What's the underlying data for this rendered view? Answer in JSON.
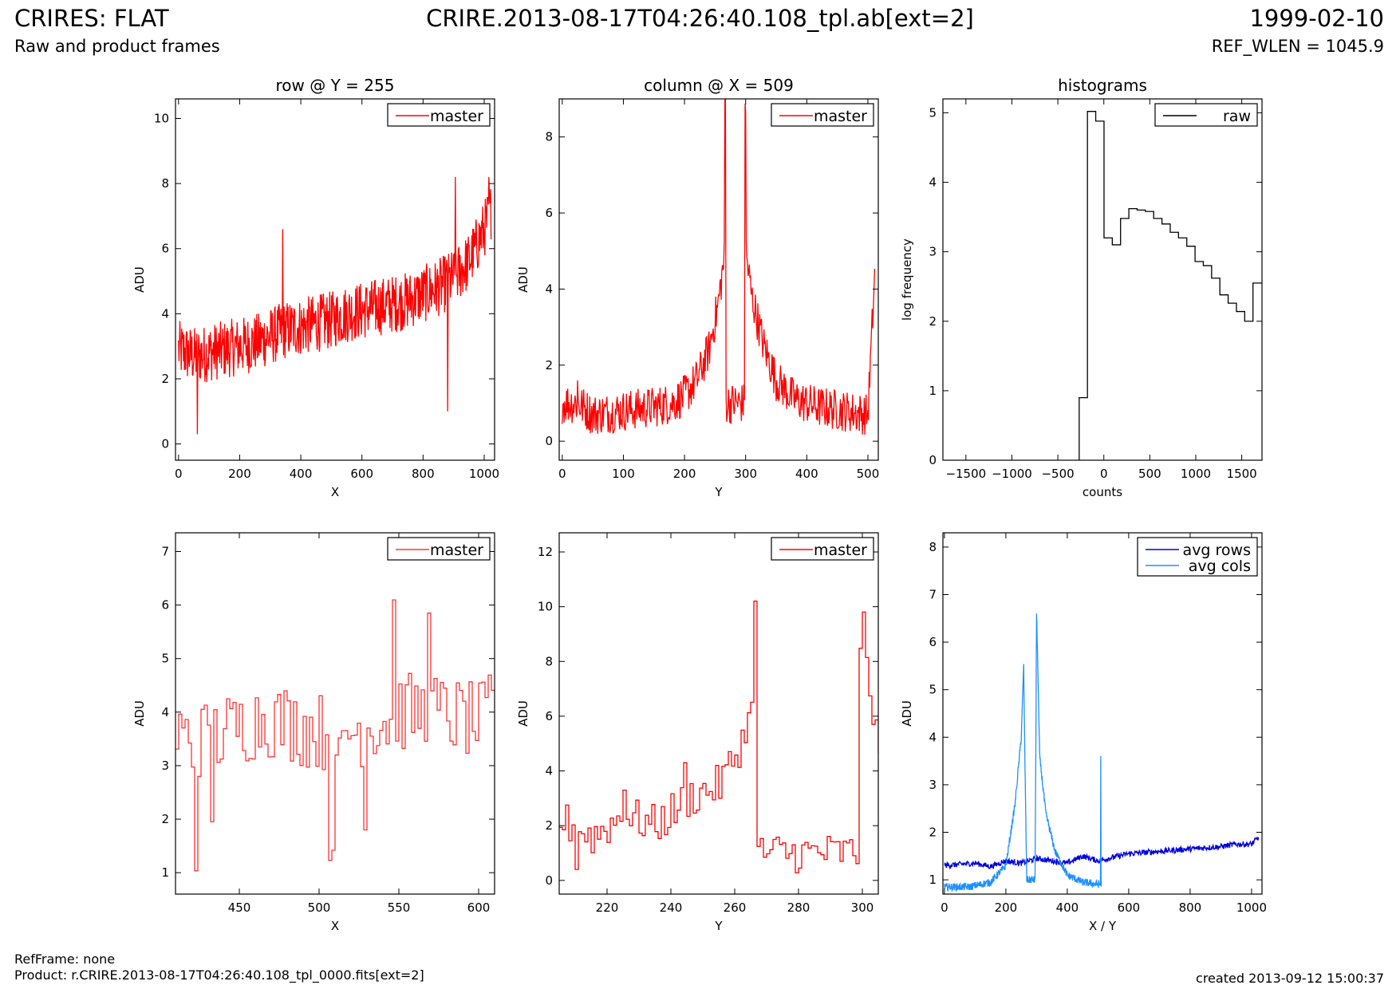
{
  "header": {
    "title": "CRIRES: FLAT",
    "subtitle": "Raw and product frames",
    "file": "CRIRE.2013-08-17T04:26:40.108_tpl.ab[ext=2]",
    "date": "1999-02-10",
    "ref_wlen": "REF_WLEN = 1045.9"
  },
  "footer": {
    "ref_frame": "RefFrame: none",
    "product": "Product: r.CRIRE.2013-08-17T04:26:40.108_tpl_0000.fits[ext=2]",
    "created": "created 2013-09-12 15:00:37"
  },
  "colors": {
    "master": "#ff0000",
    "master_zoom": "#ff3333",
    "raw": "#000000",
    "avg_rows": "#0000dd",
    "avg_cols": "#1e90ff"
  },
  "chart_data": [
    {
      "id": "row",
      "type": "line",
      "title": "row @ Y = 255",
      "xlabel": "X",
      "ylabel": "ADU",
      "xlim": [
        -10,
        1034
      ],
      "ylim": [
        -0.5,
        10.6
      ],
      "xticks": [
        0,
        200,
        400,
        600,
        800,
        1000
      ],
      "yticks": [
        0,
        2,
        4,
        6,
        8,
        10
      ],
      "legend_position": "top-right",
      "series": [
        {
          "name": "master",
          "color": "#ff0000",
          "noise": true,
          "x": [
            0,
            50,
            100,
            150,
            200,
            250,
            300,
            350,
            400,
            450,
            500,
            550,
            600,
            650,
            700,
            750,
            800,
            850,
            900,
            950,
            1000,
            1024
          ],
          "y": [
            2.9,
            2.7,
            2.8,
            2.9,
            3.0,
            3.1,
            3.3,
            3.5,
            3.6,
            3.7,
            3.8,
            4.0,
            4.1,
            4.2,
            4.3,
            4.4,
            4.6,
            4.8,
            5.1,
            5.6,
            6.6,
            7.2
          ],
          "amplitude": 0.9,
          "spikes": [
            [
              60,
              0.3
            ],
            [
              340,
              6.6
            ],
            [
              880,
              1.0
            ],
            [
              905,
              8.2
            ],
            [
              1015,
              8.2
            ]
          ]
        }
      ]
    },
    {
      "id": "col",
      "type": "line",
      "title": "column @ X = 509",
      "xlabel": "Y",
      "ylabel": "ADU",
      "xlim": [
        -5,
        517
      ],
      "ylim": [
        -0.5,
        9.0
      ],
      "xticks": [
        0,
        100,
        200,
        300,
        400,
        500
      ],
      "yticks": [
        0,
        2,
        4,
        6,
        8
      ],
      "legend_position": "top-right",
      "series": [
        {
          "name": "master",
          "color": "#ff0000",
          "noise": true,
          "x": [
            0,
            25,
            50,
            100,
            150,
            180,
            200,
            220,
            240,
            255,
            265,
            266,
            267,
            268,
            298,
            299,
            300,
            301,
            310,
            330,
            350,
            380,
            420,
            460,
            500,
            511
          ],
          "y": [
            1.0,
            1.0,
            0.7,
            0.8,
            0.9,
            1.0,
            1.2,
            1.6,
            2.4,
            3.6,
            4.8,
            8.8,
            9.2,
            1.0,
            1.0,
            9.2,
            8.8,
            4.9,
            3.8,
            2.5,
            1.6,
            1.1,
            0.9,
            0.8,
            0.7,
            4.3
          ],
          "amplitude": 0.55,
          "spikes": [
            [
              25,
              1.6
            ]
          ]
        }
      ]
    },
    {
      "id": "hist",
      "type": "step",
      "title": "histograms",
      "xlabel": "counts",
      "ylabel": "log frequency",
      "xlim": [
        -1750,
        1720
      ],
      "ylim": [
        0,
        5.2
      ],
      "xticks": [
        -1500,
        -1000,
        -500,
        0,
        500,
        1000,
        1500
      ],
      "yticks": [
        0,
        1,
        2,
        3,
        4,
        5
      ],
      "legend_position": "top-right",
      "series": [
        {
          "name": "raw",
          "color": "#000000",
          "edges": [
            -268,
            -178,
            -88,
            2,
            92,
            182,
            272,
            362,
            452,
            542,
            632,
            722,
            812,
            902,
            992,
            1082,
            1172,
            1262,
            1352,
            1442,
            1532,
            1622,
            1720
          ],
          "values": [
            0.9,
            5.02,
            4.88,
            3.2,
            3.1,
            3.48,
            3.62,
            3.6,
            3.58,
            3.48,
            3.4,
            3.28,
            3.2,
            3.08,
            2.86,
            2.8,
            2.62,
            2.38,
            2.26,
            2.14,
            2.0,
            2.55
          ]
        }
      ]
    },
    {
      "id": "row_zoom",
      "type": "step",
      "title": "",
      "xlabel": "X",
      "ylabel": "ADU",
      "xlim": [
        410,
        610
      ],
      "ylim": [
        0.6,
        7.35
      ],
      "xticks": [
        450,
        500,
        550,
        600
      ],
      "yticks": [
        1,
        2,
        3,
        4,
        5,
        6,
        7
      ],
      "legend_position": "top-right",
      "series": [
        {
          "name": "master",
          "color": "#ff3333",
          "noise": true,
          "x": [
            410,
            420,
            421,
            422,
            423,
            430,
            465,
            505,
            506,
            515,
            545,
            546,
            547,
            570,
            600,
            610
          ],
          "y": [
            3.6,
            3.4,
            2.2,
            1.1,
            3.5,
            3.5,
            3.9,
            3.6,
            1.7,
            3.6,
            3.9,
            5.9,
            4.0,
            4.0,
            3.8,
            4.1
          ],
          "amplitude": 0.75,
          "step": 2,
          "spikes": [
            [
              432,
              1.95
            ],
            [
              527,
              1.8
            ],
            [
              568,
              5.85
            ]
          ]
        }
      ]
    },
    {
      "id": "col_zoom",
      "type": "step",
      "title": "",
      "xlabel": "Y",
      "ylabel": "ADU",
      "xlim": [
        205,
        305
      ],
      "ylim": [
        -0.5,
        12.7
      ],
      "xticks": [
        220,
        240,
        260,
        280,
        300
      ],
      "yticks": [
        0,
        2,
        4,
        6,
        8,
        10,
        12
      ],
      "legend_position": "top-right",
      "series": [
        {
          "name": "master",
          "color": "#ff0000",
          "noise": true,
          "x": [
            205,
            215,
            225,
            235,
            245,
            255,
            260,
            264,
            265,
            266,
            267,
            298,
            299,
            300,
            301,
            302,
            303,
            305
          ],
          "y": [
            2.2,
            1.6,
            2.4,
            2.0,
            3.0,
            3.5,
            4.6,
            5.7,
            7.2,
            9.9,
            1.0,
            1.0,
            8.9,
            9.2,
            8.6,
            6.0,
            5.6,
            5.4
          ],
          "amplitude": 0.75,
          "step": 1,
          "spikes": [
            [
              210,
              0.4
            ],
            [
              225,
              3.3
            ],
            [
              244,
              4.3
            ]
          ]
        }
      ]
    },
    {
      "id": "avg",
      "type": "line",
      "title": "",
      "xlabel": "X / Y",
      "ylabel": "ADU",
      "xlim": [
        -5,
        1034
      ],
      "ylim": [
        0.7,
        8.3
      ],
      "xticks": [
        0,
        200,
        400,
        600,
        800,
        1000
      ],
      "yticks": [
        1,
        2,
        3,
        4,
        5,
        6,
        7,
        8
      ],
      "legend_position": "top-right",
      "series": [
        {
          "name": "avg rows",
          "color": "#0000dd",
          "noise": true,
          "x": [
            0,
            100,
            150,
            200,
            250,
            300,
            350,
            400,
            450,
            500,
            600,
            700,
            800,
            900,
            950,
            1000,
            1024
          ],
          "y": [
            1.3,
            1.35,
            1.28,
            1.4,
            1.35,
            1.45,
            1.4,
            1.35,
            1.5,
            1.4,
            1.55,
            1.6,
            1.65,
            1.7,
            1.75,
            1.75,
            1.9
          ],
          "amplitude": 0.06
        },
        {
          "name": "avg cols",
          "color": "#1e90ff",
          "noise": true,
          "x": [
            0,
            80,
            150,
            200,
            230,
            250,
            258,
            262,
            268,
            295,
            300,
            305,
            310,
            330,
            360,
            400,
            450,
            508,
            509,
            510,
            511
          ],
          "y": [
            0.85,
            0.85,
            0.95,
            1.3,
            2.6,
            4.0,
            5.5,
            3.5,
            1.0,
            1.0,
            6.6,
            5.2,
            3.6,
            2.4,
            1.6,
            1.1,
            0.95,
            0.9,
            3.6,
            0.9,
            0.9
          ],
          "amplitude": 0.08
        }
      ]
    }
  ]
}
